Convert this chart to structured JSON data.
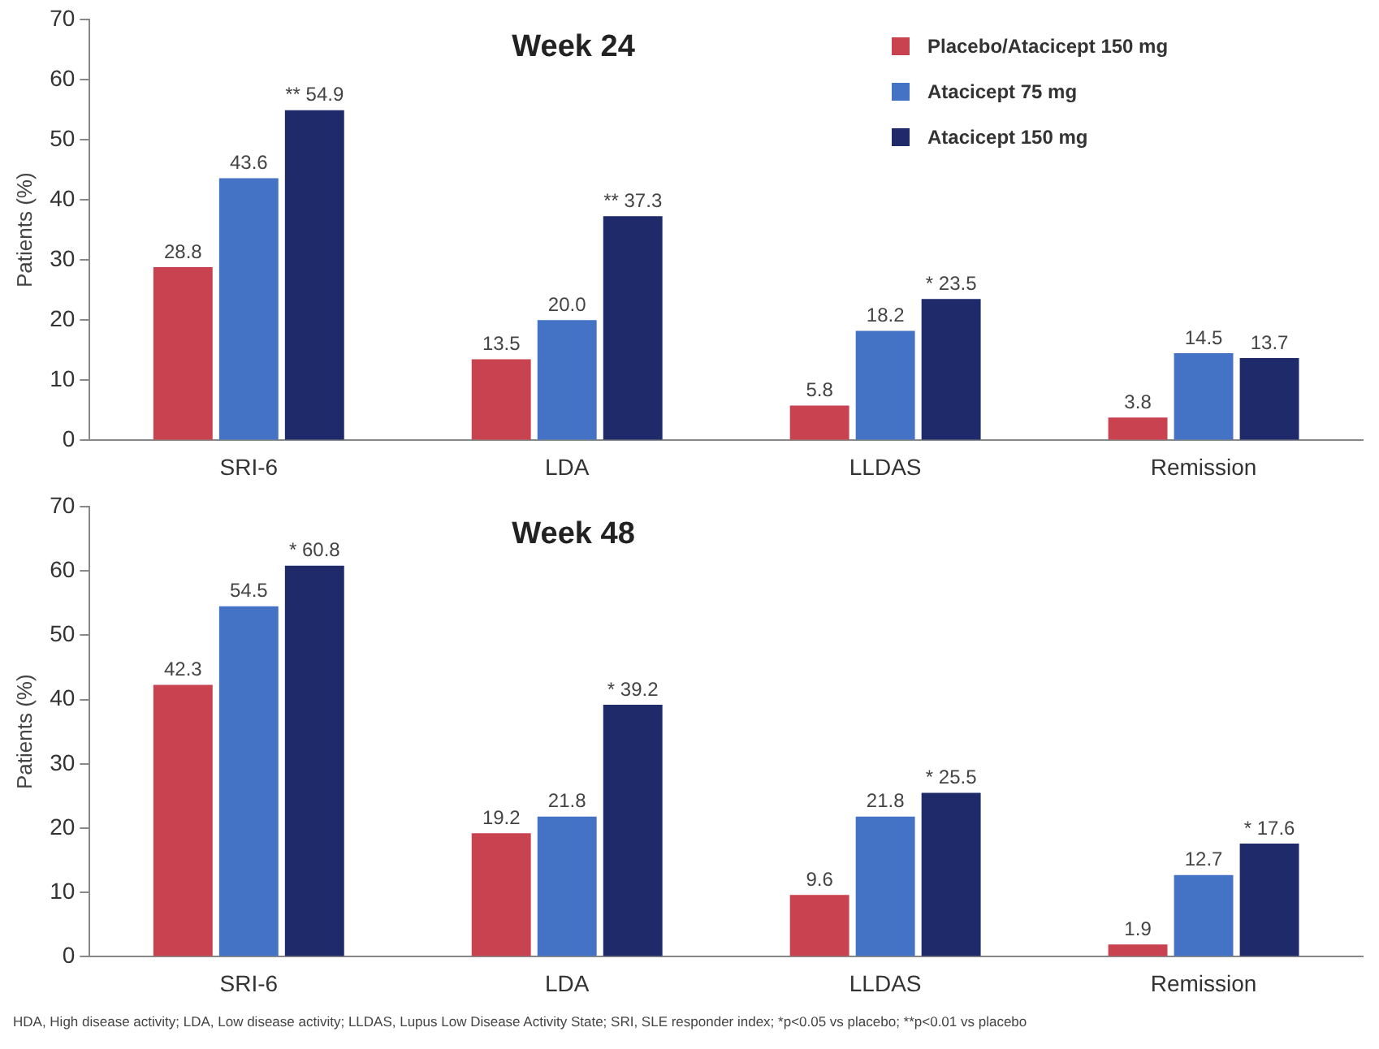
{
  "chart_data": [
    {
      "type": "bar",
      "title": "Week 24",
      "ylabel": "Patients (%)",
      "categories": [
        "SRI-6",
        "LDA",
        "LLDAS",
        "Remission"
      ],
      "series": [
        {
          "name": "Placebo/Atacicept 150 mg",
          "color": "#c8424f",
          "values": [
            28.8,
            13.5,
            5.8,
            3.8
          ],
          "value_labels": [
            "28.8",
            "13.5",
            "5.8",
            "3.8"
          ]
        },
        {
          "name": "Atacicept 75 mg",
          "color": "#4472c4",
          "values": [
            43.6,
            20.0,
            18.2,
            14.5
          ],
          "value_labels": [
            "43.6",
            "20.0",
            "18.2",
            "14.5"
          ]
        },
        {
          "name": "Atacicept 150 mg",
          "color": "#1f2a6b",
          "values": [
            54.9,
            37.3,
            23.5,
            13.7
          ],
          "value_labels": [
            "** 54.9",
            "** 37.3",
            "* 23.5",
            "13.7"
          ]
        }
      ],
      "ylim": [
        0,
        70
      ],
      "yticks": [
        0,
        10,
        20,
        30,
        40,
        50,
        60,
        70
      ],
      "grid": false,
      "legend": "top right"
    },
    {
      "type": "bar",
      "title": "Week 48",
      "ylabel": "Patients (%)",
      "categories": [
        "SRI-6",
        "LDA",
        "LLDAS",
        "Remission"
      ],
      "series": [
        {
          "color": "#c8424f",
          "values": [
            42.3,
            19.2,
            9.6,
            1.9
          ],
          "value_labels": [
            "42.3",
            "19.2",
            "9.6",
            "1.9"
          ]
        },
        {
          "color": "#4472c4",
          "values": [
            54.5,
            21.8,
            21.8,
            12.7
          ],
          "value_labels": [
            "54.5",
            "21.8",
            "21.8",
            "12.7"
          ]
        },
        {
          "color": "#1f2a6b",
          "values": [
            60.8,
            39.2,
            25.5,
            17.6
          ],
          "value_labels": [
            "* 60.8",
            "* 39.2",
            "* 25.5",
            "* 17.6"
          ]
        }
      ],
      "ylim": [
        0,
        70
      ],
      "yticks": [
        0,
        10,
        20,
        30,
        40,
        50,
        60,
        70
      ],
      "grid": false,
      "legend": false,
      "annotations": [
        "HDA, High disease activity; LDA, Low disease activity; LLDAS, Lupus Low Disease Activity State; SRI, SLE responder index; *p<0.05 vs placebo; **p<0.01 vs placebo"
      ]
    }
  ]
}
